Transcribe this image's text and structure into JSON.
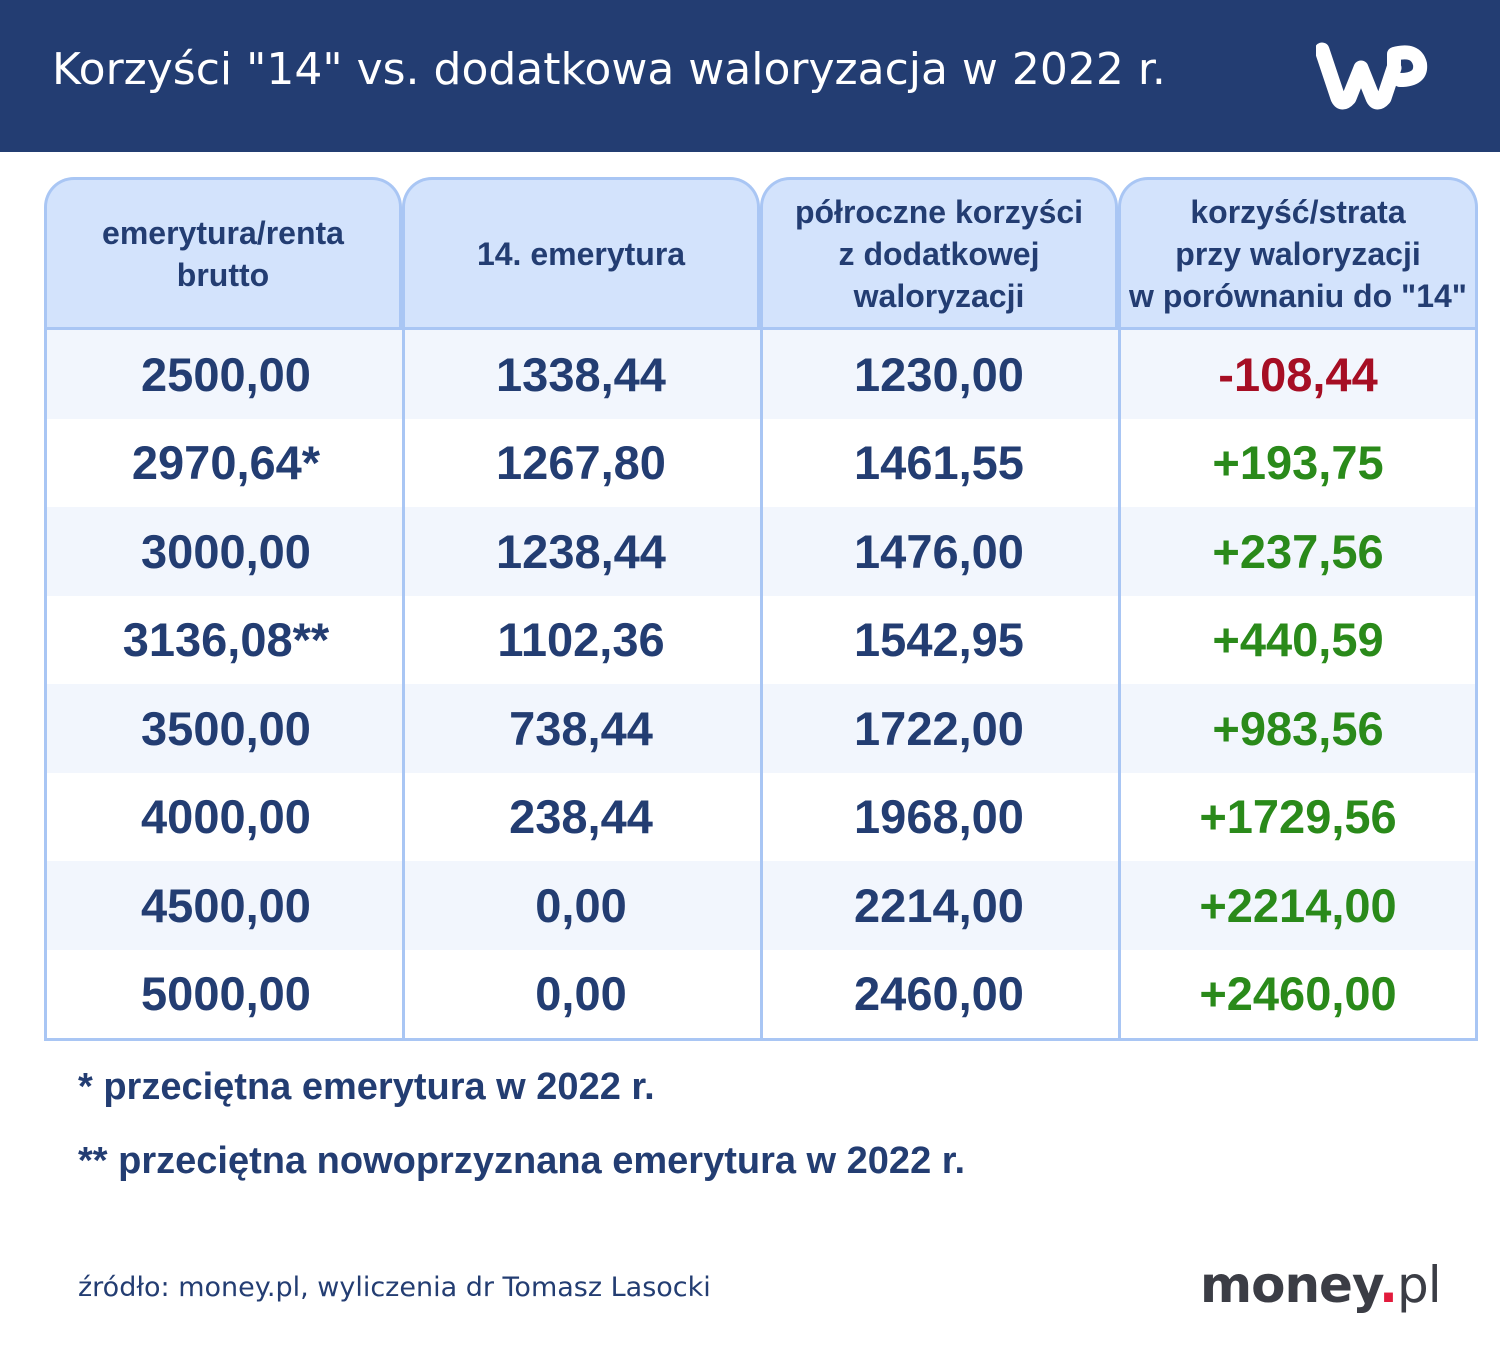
{
  "header": {
    "title": "Korzyści \"14\" vs. dodatkowa waloryzacja w 2022 r.",
    "logo_text": "WP"
  },
  "chart_data": {
    "type": "table",
    "title": "Korzyści \"14\" vs. dodatkowa waloryzacja w 2022 r.",
    "columns": [
      [
        "emerytura/renta",
        "brutto"
      ],
      [
        "14. emerytura"
      ],
      [
        "półroczne korzyści",
        "z dodatkowej",
        "waloryzacji"
      ],
      [
        "korzyść/strata",
        "przy waloryzacji",
        "w porównaniu do \"14\""
      ]
    ],
    "rows": [
      [
        "2500,00",
        "1338,44",
        "1230,00",
        "-108,44"
      ],
      [
        "2970,64*",
        "1267,80",
        "1461,55",
        "+193,75"
      ],
      [
        "3000,00",
        "1238,44",
        "1476,00",
        "+237,56"
      ],
      [
        "3136,08**",
        "1102,36",
        "1542,95",
        "+440,59"
      ],
      [
        "3500,00",
        "738,44",
        "1722,00",
        "+983,56"
      ],
      [
        "4000,00",
        "238,44",
        "1968,00",
        "+1729,56"
      ],
      [
        "4500,00",
        "0,00",
        "2214,00",
        "+2214,00"
      ],
      [
        "5000,00",
        "0,00",
        "2460,00",
        "+2460,00"
      ]
    ]
  },
  "colors": {
    "header_bg": "#233d72",
    "text_dark": "#233d72",
    "negative": "#a60e24",
    "positive": "#2a8a1a",
    "head_bg": "#d3e3fc",
    "border": "#a9c6f4"
  },
  "footnotes": [
    "* przeciętna emerytura w 2022 r.",
    "** przeciętna nowoprzyznana emerytura w 2022 r."
  ],
  "source": "źródło: money.pl, wyliczenia dr Tomasz Lasocki",
  "brand": {
    "name": "money",
    "dot": ".",
    "tld": "pl"
  }
}
